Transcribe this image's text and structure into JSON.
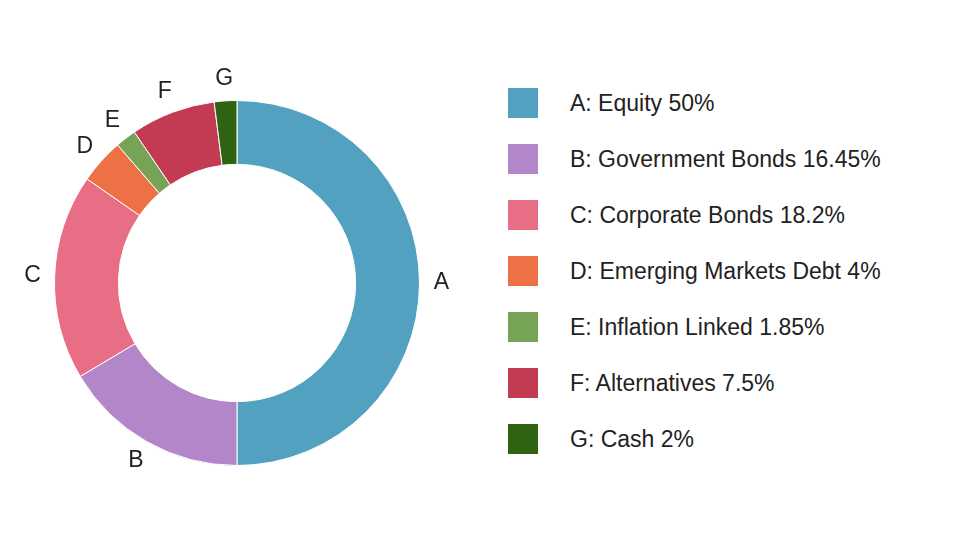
{
  "chart_data": {
    "type": "doughnut",
    "categories": [
      "A",
      "B",
      "C",
      "D",
      "E",
      "F",
      "G"
    ],
    "values": [
      50,
      16.45,
      18.2,
      4,
      1.85,
      7.5,
      2
    ],
    "legend_labels": [
      "A: Equity 50%",
      "B: Government Bonds 16.45%",
      "C: Corporate Bonds 18.2%",
      "D: Emerging Markets Debt 4%",
      "E: Inflation Linked 1.85%",
      "F: Alternatives 7.5%",
      "G: Cash 2%"
    ],
    "colors": [
      "#52a1c0",
      "#b286c8",
      "#e86e86",
      "#ee7045",
      "#77a356",
      "#c23b52",
      "#2f6312"
    ],
    "legend": "right"
  }
}
